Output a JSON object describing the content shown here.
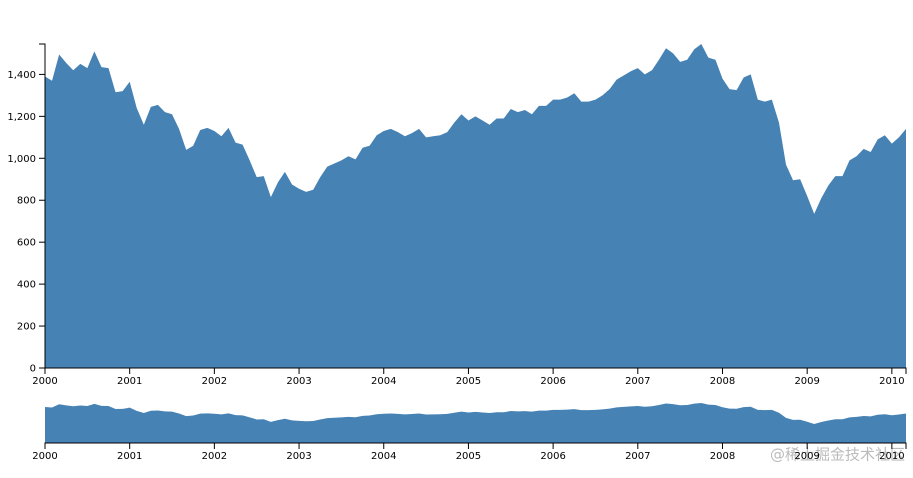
{
  "chart_data": {
    "type": "area",
    "color": "#4682b4",
    "x": [
      2000,
      2000.083,
      2000.167,
      2000.25,
      2000.333,
      2000.417,
      2000.5,
      2000.583,
      2000.667,
      2000.75,
      2000.833,
      2000.917,
      2001,
      2001.083,
      2001.167,
      2001.25,
      2001.333,
      2001.417,
      2001.5,
      2001.583,
      2001.667,
      2001.75,
      2001.833,
      2001.917,
      2002,
      2002.083,
      2002.167,
      2002.25,
      2002.333,
      2002.417,
      2002.5,
      2002.583,
      2002.667,
      2002.75,
      2002.833,
      2002.917,
      2003,
      2003.083,
      2003.167,
      2003.25,
      2003.333,
      2003.417,
      2003.5,
      2003.583,
      2003.667,
      2003.75,
      2003.833,
      2003.917,
      2004,
      2004.083,
      2004.167,
      2004.25,
      2004.333,
      2004.417,
      2004.5,
      2004.583,
      2004.667,
      2004.75,
      2004.833,
      2004.917,
      2005,
      2005.083,
      2005.167,
      2005.25,
      2005.333,
      2005.417,
      2005.5,
      2005.583,
      2005.667,
      2005.75,
      2005.833,
      2005.917,
      2006,
      2006.083,
      2006.167,
      2006.25,
      2006.333,
      2006.417,
      2006.5,
      2006.583,
      2006.667,
      2006.75,
      2006.833,
      2006.917,
      2007,
      2007.083,
      2007.167,
      2007.25,
      2007.333,
      2007.417,
      2007.5,
      2007.583,
      2007.667,
      2007.75,
      2007.833,
      2007.917,
      2008,
      2008.083,
      2008.167,
      2008.25,
      2008.333,
      2008.417,
      2008.5,
      2008.583,
      2008.667,
      2008.75,
      2008.833,
      2008.917,
      2009,
      2009.083,
      2009.167,
      2009.25,
      2009.333,
      2009.417,
      2009.5,
      2009.583,
      2009.667,
      2009.75,
      2009.833,
      2009.917,
      2010,
      2010.083,
      2010.167
    ],
    "values": [
      1390,
      1370,
      1495,
      1455,
      1420,
      1450,
      1430,
      1510,
      1435,
      1430,
      1315,
      1320,
      1365,
      1240,
      1160,
      1245,
      1255,
      1220,
      1210,
      1140,
      1040,
      1060,
      1135,
      1145,
      1130,
      1105,
      1145,
      1075,
      1065,
      990,
      910,
      915,
      815,
      885,
      935,
      875,
      855,
      840,
      850,
      910,
      960,
      975,
      990,
      1010,
      995,
      1050,
      1060,
      1110,
      1130,
      1140,
      1125,
      1105,
      1120,
      1140,
      1100,
      1105,
      1110,
      1125,
      1170,
      1210,
      1180,
      1200,
      1180,
      1160,
      1190,
      1190,
      1235,
      1220,
      1230,
      1210,
      1250,
      1250,
      1280,
      1280,
      1290,
      1310,
      1270,
      1270,
      1280,
      1300,
      1330,
      1375,
      1395,
      1415,
      1430,
      1400,
      1420,
      1470,
      1525,
      1500,
      1460,
      1470,
      1520,
      1545,
      1480,
      1470,
      1380,
      1330,
      1325,
      1385,
      1400,
      1280,
      1270,
      1280,
      1170,
      970,
      895,
      900,
      820,
      735,
      810,
      870,
      915,
      915,
      990,
      1010,
      1045,
      1030,
      1090,
      1110,
      1070,
      1100,
      1140
    ],
    "xlim": [
      2000,
      2010.167
    ],
    "ylim": [
      0,
      1545
    ],
    "xticks": [
      2000,
      2001,
      2002,
      2003,
      2004,
      2005,
      2006,
      2007,
      2008,
      2009,
      2010
    ],
    "yticks": [
      0,
      200,
      400,
      600,
      800,
      {
        "value": 1000,
        "label": "1,000"
      },
      {
        "value": 1200,
        "label": "1,200"
      },
      {
        "value": 1400,
        "label": "1,400"
      }
    ],
    "watermark": "@稀土掘金技术社区"
  }
}
